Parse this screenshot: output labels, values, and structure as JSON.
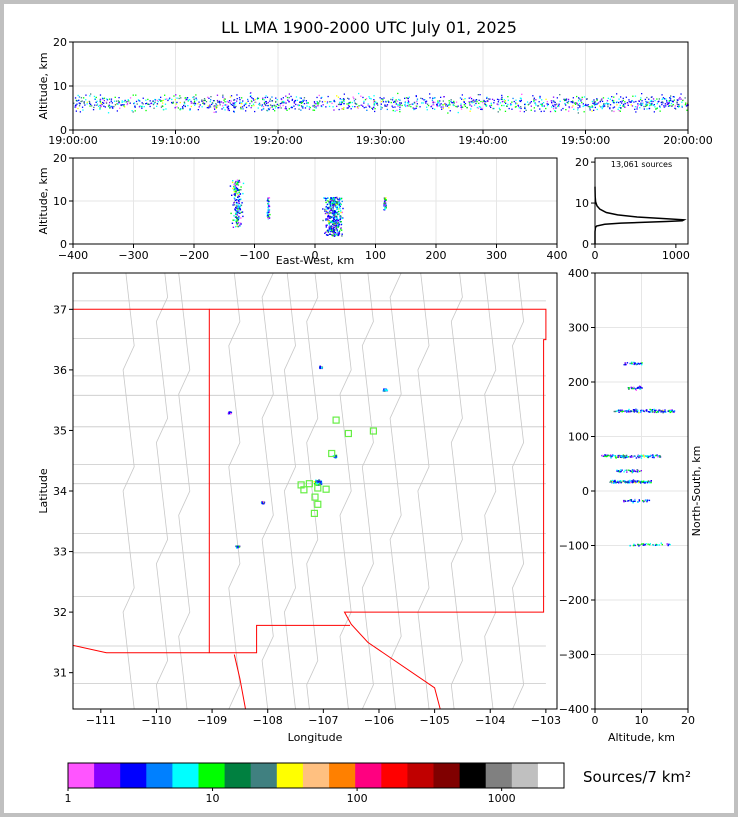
{
  "title": "LL LMA 1900-2000 UTC July 01, 2025",
  "units_label": "Sources/7 km²",
  "chart_data": [
    {
      "type": "scatter",
      "panel": "altitude-time",
      "ylabel": "Altitude, km",
      "xlim": [
        "19:00:00",
        "20:00:00"
      ],
      "ylim": [
        0,
        20
      ],
      "xticks": [
        "19:00:00",
        "19:10:00",
        "19:20:00",
        "19:30:00",
        "19:40:00",
        "19:50:00",
        "20:00:00"
      ],
      "yticks": [
        0,
        10,
        20
      ],
      "grid": true
    },
    {
      "type": "scatter",
      "panel": "altitude-eastwest",
      "xlabel": "East-West, km",
      "ylabel": "Altitude, km",
      "xlim": [
        -400,
        400
      ],
      "ylim": [
        0,
        20
      ],
      "xticks": [
        -400,
        -300,
        -200,
        -100,
        0,
        100,
        200,
        300,
        400
      ],
      "yticks": [
        0,
        10,
        20
      ],
      "grid": true,
      "clusters": [
        {
          "x": -130,
          "zmin": 4,
          "zmax": 15
        },
        {
          "x": -78,
          "zmin": 6,
          "zmax": 11
        },
        {
          "x": 30,
          "zmin": 2,
          "zmax": 11
        },
        {
          "x": 115,
          "zmin": 8,
          "zmax": 11
        }
      ]
    },
    {
      "type": "line",
      "panel": "altitude-histogram",
      "annotation": "13,061 sources",
      "xlim": [
        0,
        1150
      ],
      "ylim": [
        0,
        21
      ],
      "xticks": [
        0,
        1000
      ],
      "yticks": [
        0,
        10,
        20
      ],
      "x": [
        0,
        0,
        2,
        5,
        20,
        120,
        320,
        620,
        880,
        1080,
        1100,
        860,
        520,
        280,
        140,
        60,
        25,
        8,
        3,
        0
      ],
      "y": [
        0,
        3,
        3.5,
        4.0,
        4.4,
        4.8,
        5.1,
        5.3,
        5.5,
        5.7,
        5.9,
        6.2,
        6.6,
        7.1,
        7.7,
        8.5,
        9.3,
        10.3,
        11.5,
        14
      ]
    },
    {
      "type": "scatter",
      "panel": "plan-view",
      "xlabel": "Longitude",
      "ylabel": "Latitude",
      "xlim": [
        -111.5,
        -102.8
      ],
      "ylim": [
        30.4,
        37.6
      ],
      "xticks": [
        -111,
        -110,
        -109,
        -108,
        -107,
        -106,
        -105,
        -104,
        -103
      ],
      "yticks": [
        31,
        32,
        33,
        34,
        35,
        36,
        37
      ],
      "stations": [
        [
          -106.77,
          35.17
        ],
        [
          -106.55,
          34.95
        ],
        [
          -106.1,
          34.99
        ],
        [
          -107.25,
          34.12
        ],
        [
          -107.1,
          34.05
        ],
        [
          -106.95,
          34.03
        ],
        [
          -107.15,
          33.9
        ],
        [
          -107.1,
          33.78
        ],
        [
          -107.16,
          33.63
        ],
        [
          -107.35,
          34.02
        ],
        [
          -107.4,
          34.1
        ],
        [
          -106.85,
          34.62
        ]
      ],
      "clusters": [
        {
          "lon": -108.7,
          "lat": 35.3
        },
        {
          "lon": -107.1,
          "lat": 34.15
        },
        {
          "lon": -106.8,
          "lat": 34.58
        },
        {
          "lon": -107.05,
          "lat": 36.05
        },
        {
          "lon": -105.9,
          "lat": 35.68
        },
        {
          "lon": -108.1,
          "lat": 33.82
        },
        {
          "lon": -108.55,
          "lat": 33.09
        }
      ]
    },
    {
      "type": "scatter",
      "panel": "northsouth-altitude",
      "xlabel": "Altitude, km",
      "ylabel": "North-South, km",
      "xlim": [
        0,
        20
      ],
      "ylim": [
        -400,
        400
      ],
      "xticks": [
        0,
        10,
        20
      ],
      "yticks": [
        -400,
        -300,
        -200,
        -100,
        0,
        100,
        200,
        300,
        400
      ],
      "grid": true,
      "clusters": [
        {
          "y": 235,
          "amin": 6,
          "amax": 10
        },
        {
          "y": 190,
          "amin": 7,
          "amax": 10
        },
        {
          "y": 148,
          "amin": 4,
          "amax": 17
        },
        {
          "y": 65,
          "amin": 1,
          "amax": 14
        },
        {
          "y": 38,
          "amin": 4,
          "amax": 10
        },
        {
          "y": 18,
          "amin": 3,
          "amax": 12
        },
        {
          "y": -17,
          "amin": 6,
          "amax": 12
        },
        {
          "y": -97,
          "amin": 7,
          "amax": 16
        }
      ]
    },
    {
      "type": "colorbar",
      "scale": "log",
      "range": [
        1,
        2700
      ],
      "ticks": [
        1,
        10,
        100,
        1000
      ],
      "colors": [
        "#ff55ff",
        "#8800ff",
        "#0000ff",
        "#0080ff",
        "#00ffff",
        "#00ff00",
        "#008040",
        "#408080",
        "#ffff00",
        "#ffc080",
        "#ff8000",
        "#ff0080",
        "#ff0000",
        "#c00000",
        "#800000",
        "#000000",
        "#808080",
        "#c0c0c0",
        "#ffffff"
      ]
    }
  ]
}
